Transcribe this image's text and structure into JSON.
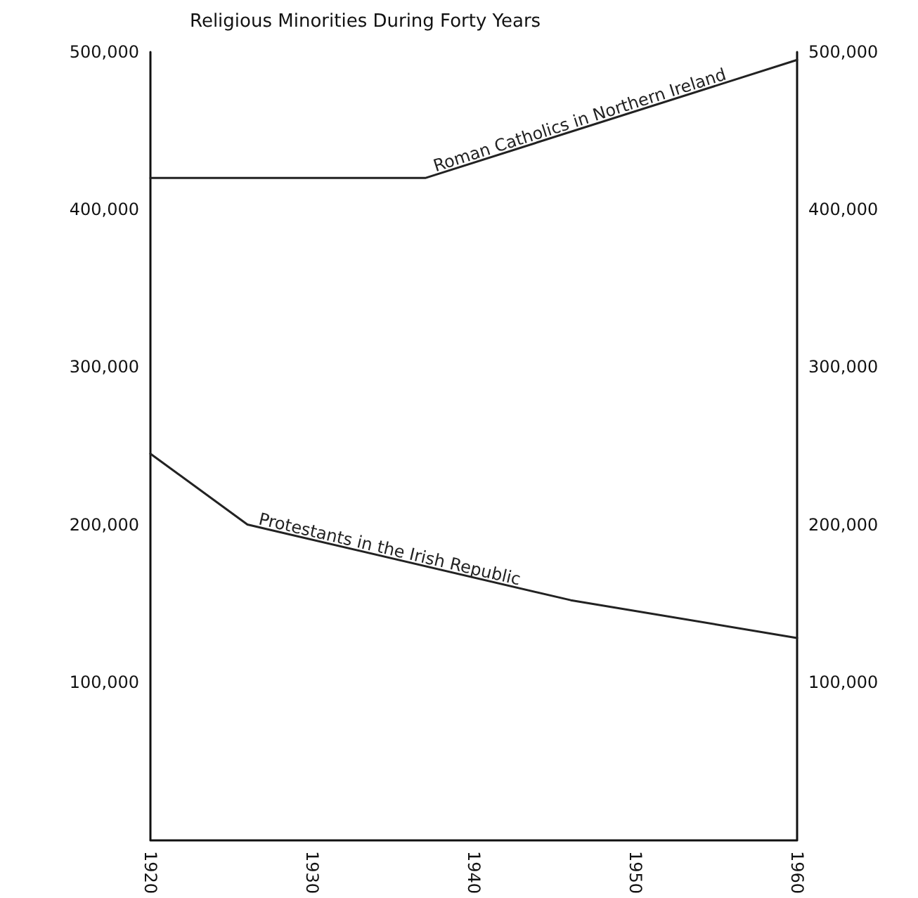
{
  "chart_data": {
    "type": "line",
    "title": "Religious Minorities During Forty Years",
    "x": [
      1920,
      1937,
      1960
    ],
    "series": [
      {
        "name": "Roman Catholics in Northern Ireland",
        "color": "#222222",
        "values": [
          420000,
          420000,
          495000
        ]
      },
      {
        "name": "Protestants in the Irish Republic",
        "color": "#222222",
        "x": [
          1920,
          1926,
          1946,
          1960
        ],
        "values": [
          245000,
          200000,
          152000,
          128000
        ]
      }
    ],
    "xlim": [
      1920,
      1960
    ],
    "xticks": [
      1920,
      1930,
      1940,
      1950,
      1960
    ],
    "ylim": [
      0,
      500000
    ],
    "yticks": [
      {
        "value": 100000,
        "label": "100,000"
      },
      {
        "value": 200000,
        "label": "200,000"
      },
      {
        "value": 300000,
        "label": "300,000"
      },
      {
        "value": 400000,
        "label": "400,000"
      },
      {
        "value": 500000,
        "label": "500,000"
      }
    ],
    "y2lim": [
      0,
      500000
    ],
    "y2ticks": [
      {
        "value": 100000,
        "label": "100,000"
      },
      {
        "value": 200000,
        "label": "200,000"
      },
      {
        "value": 300000,
        "label": "300,000"
      },
      {
        "value": 400000,
        "label": "400,000"
      },
      {
        "value": 500000,
        "label": "500,000"
      }
    ],
    "grid": false,
    "marker": "none",
    "line_style": "solid"
  }
}
